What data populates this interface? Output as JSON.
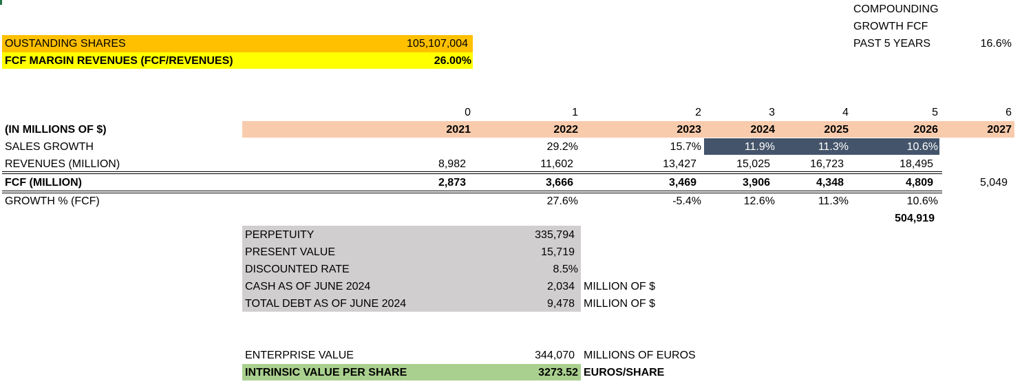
{
  "colors": {
    "orange": "#ffc000",
    "yellow": "#ffff00",
    "peach": "#f8cbad",
    "slate": "#44546a",
    "gray": "#d0cece",
    "green": "#a9d08e"
  },
  "top": {
    "shares_label": "OUSTANDING SHARES",
    "shares_value": "105,107,004",
    "margin_label": "FCF MARGIN REVENUES (FCF/REVENUES)",
    "margin_value": "26.00%"
  },
  "compounding": {
    "line1": "COMPOUNDING",
    "line2": "GROWTH FCF",
    "line3": "PAST 5 YEARS",
    "value": "16.6%"
  },
  "table": {
    "indices": [
      "0",
      "1",
      "2",
      "3",
      "4",
      "5",
      "6"
    ],
    "header_label": "(IN MILLIONS OF $)",
    "years": [
      "2021",
      "2022",
      "2023",
      "2024",
      "2025",
      "2026",
      "2027"
    ],
    "sales_growth": {
      "label": "SALES GROWTH",
      "values": [
        "",
        "29.2%",
        "15.7%",
        "11.9%",
        "11.3%",
        "10.6%",
        ""
      ]
    },
    "revenues": {
      "label": "REVENUES (MILLION)",
      "values": [
        "8,982",
        "11,602",
        "13,427",
        "15,025",
        "16,723",
        "18,495",
        ""
      ]
    },
    "fcf": {
      "label": "FCF (MILLION)",
      "values": [
        "2,873",
        "3,666",
        "3,469",
        "3,906",
        "4,348",
        "4,809",
        "5,049"
      ]
    },
    "growth": {
      "label": "GROWTH % (FCF)",
      "values": [
        "",
        "27.6%",
        "-5.4%",
        "12.6%",
        "11.3%",
        "10.6%",
        ""
      ]
    },
    "terminal_value": "504,919"
  },
  "valuation": {
    "rows": [
      {
        "label": "PERPETUITY",
        "value": "335,794",
        "unit": ""
      },
      {
        "label": "PRESENT VALUE",
        "value": "15,719",
        "unit": ""
      },
      {
        "label": "DISCOUNTED RATE",
        "value": "8.5%",
        "unit": ""
      },
      {
        "label": "CASH AS OF JUNE 2024",
        "value": "2,034",
        "unit": "MILLION OF $"
      },
      {
        "label": "TOTAL DEBT AS OF JUNE 2024",
        "value": "9,478",
        "unit": "MILLION OF $"
      }
    ]
  },
  "result": {
    "ev_label": "ENTERPRISE VALUE",
    "ev_value": "344,070",
    "ev_unit": "MILLIONS OF EUROS",
    "iv_label": "INTRINSIC VALUE PER SHARE",
    "iv_value": "3273.52",
    "iv_unit": "EUROS/SHARE"
  }
}
